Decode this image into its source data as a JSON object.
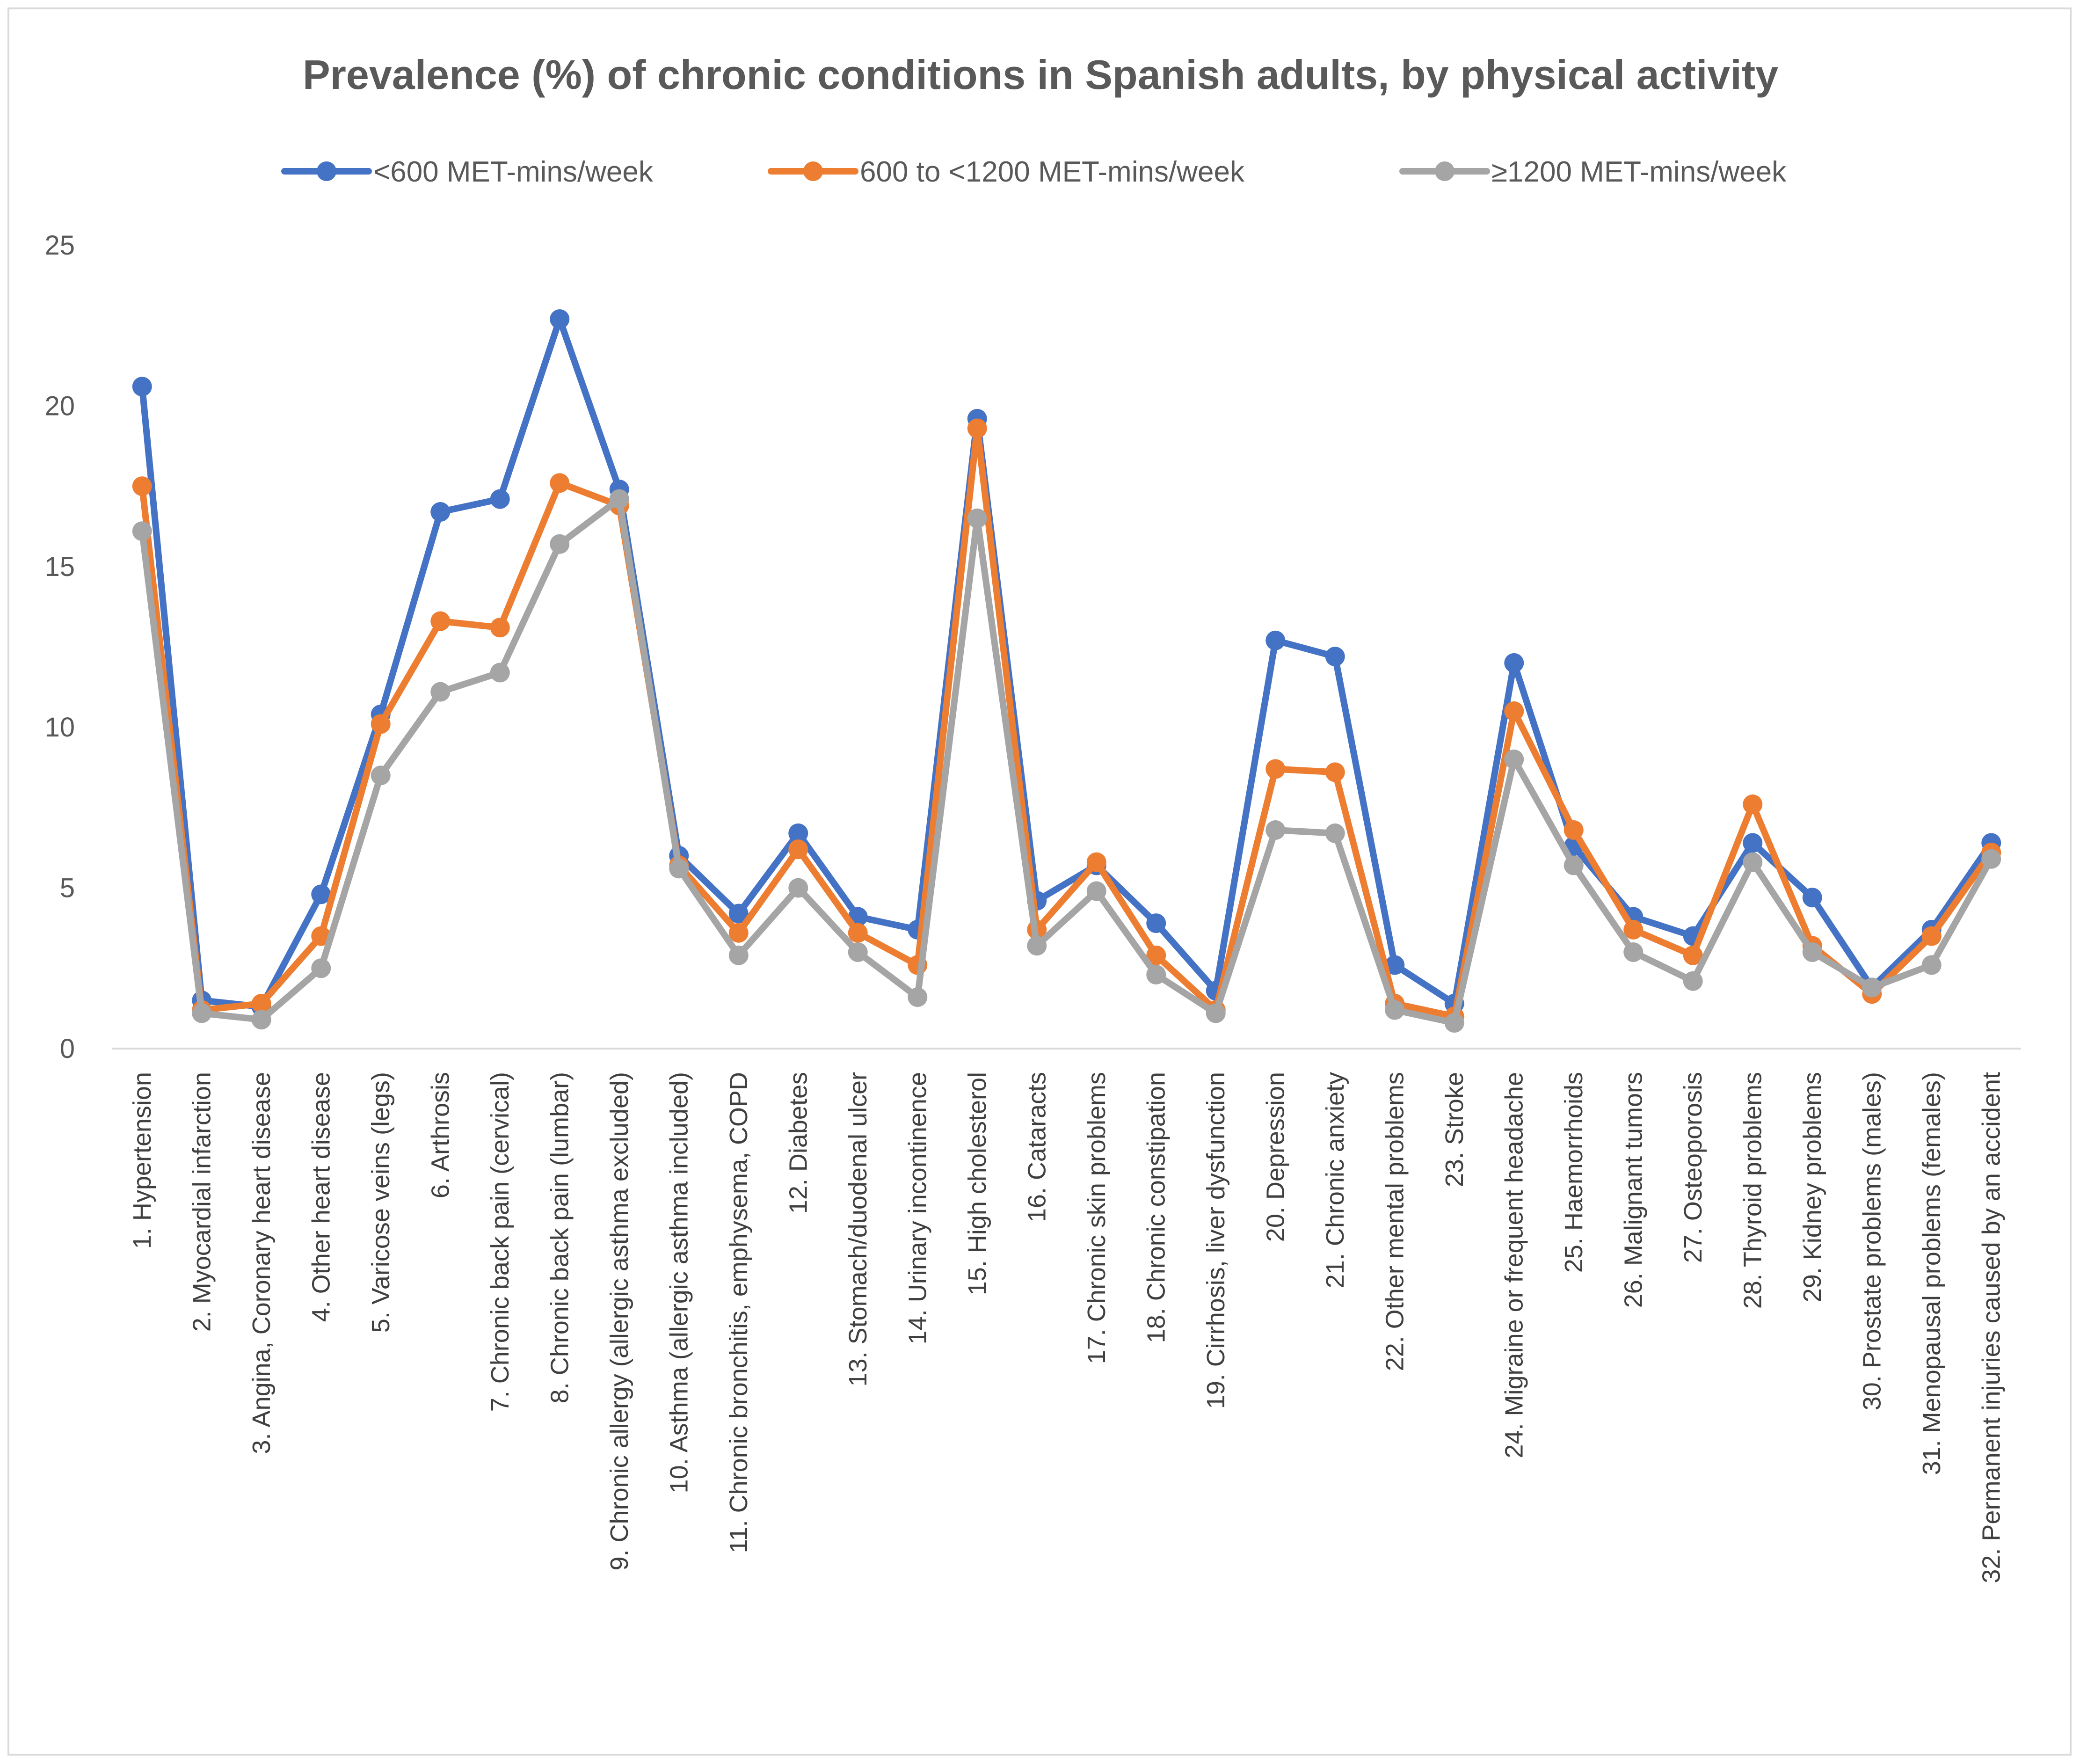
{
  "chart_data": {
    "type": "line",
    "title": "Prevalence (%) of chronic conditions in Spanish adults, by physical activity",
    "xlabel": "",
    "ylabel": "",
    "ylim": [
      0,
      25
    ],
    "yticks": [
      "0",
      "5",
      "10",
      "15",
      "20",
      "25"
    ],
    "grid": false,
    "legend_position": "top",
    "categories": [
      "1. Hypertension",
      "2. Myocardial infarction",
      "3. Angina, Coronary heart disease",
      "4. Other heart disease",
      "5. Varicose veins (legs)",
      "6. Arthrosis",
      "7. Chronic back pain (cervical)",
      "8. Chronic back pain (lumbar)",
      "9. Chronic allergy (allergic asthma excluded)",
      "10. Asthma (allergic asthma included)",
      "11. Chronic bronchitis, emphysema, COPD",
      "12. Diabetes",
      "13. Stomach/duodenal ulcer",
      "14. Urinary incontinence",
      "15. High cholesterol",
      "16. Cataracts",
      "17. Chronic skin problems",
      "18. Chronic constipation",
      "19. Cirrhosis, liver dysfunction",
      "20. Depression",
      "21. Chronic anxiety",
      "22. Other mental problems",
      "23. Stroke",
      "24. Migraine or frequent headache",
      "25. Haemorrhoids",
      "26. Malignant tumors",
      "27. Osteoporosis",
      "28. Thyroid problems",
      "29. Kidney problems",
      "30. Prostate problems (males)",
      "31. Menopausal problems (females)",
      "32. Permanent injuries caused by an accident"
    ],
    "series": [
      {
        "name": "<600 MET-mins/week",
        "color": "#4472c4",
        "values": [
          20.6,
          1.5,
          1.3,
          4.8,
          10.4,
          16.7,
          17.1,
          22.7,
          17.4,
          6.0,
          4.2,
          6.7,
          4.1,
          3.7,
          19.6,
          4.6,
          5.7,
          3.9,
          1.8,
          12.7,
          12.2,
          2.6,
          1.4,
          12.0,
          6.3,
          4.1,
          3.5,
          6.4,
          4.7,
          1.9,
          3.7,
          6.4
        ]
      },
      {
        "name": "600 to <1200 MET-mins/week",
        "color": "#ed7d31",
        "values": [
          17.5,
          1.2,
          1.4,
          3.5,
          10.1,
          13.3,
          13.1,
          17.6,
          16.9,
          5.7,
          3.6,
          6.2,
          3.6,
          2.6,
          19.3,
          3.7,
          5.8,
          2.9,
          1.2,
          8.7,
          8.6,
          1.4,
          1.0,
          10.5,
          6.8,
          3.7,
          2.9,
          7.6,
          3.2,
          1.7,
          3.5,
          6.1
        ]
      },
      {
        "name": "≥1200 MET-mins/week",
        "color": "#a5a5a5",
        "values": [
          16.1,
          1.1,
          0.9,
          2.5,
          8.5,
          11.1,
          11.7,
          15.7,
          17.1,
          5.6,
          2.9,
          5.0,
          3.0,
          1.6,
          16.5,
          3.2,
          4.9,
          2.3,
          1.1,
          6.8,
          6.7,
          1.2,
          0.8,
          9.0,
          5.7,
          3.0,
          2.1,
          5.8,
          3.0,
          1.9,
          2.6,
          5.9
        ]
      }
    ]
  }
}
